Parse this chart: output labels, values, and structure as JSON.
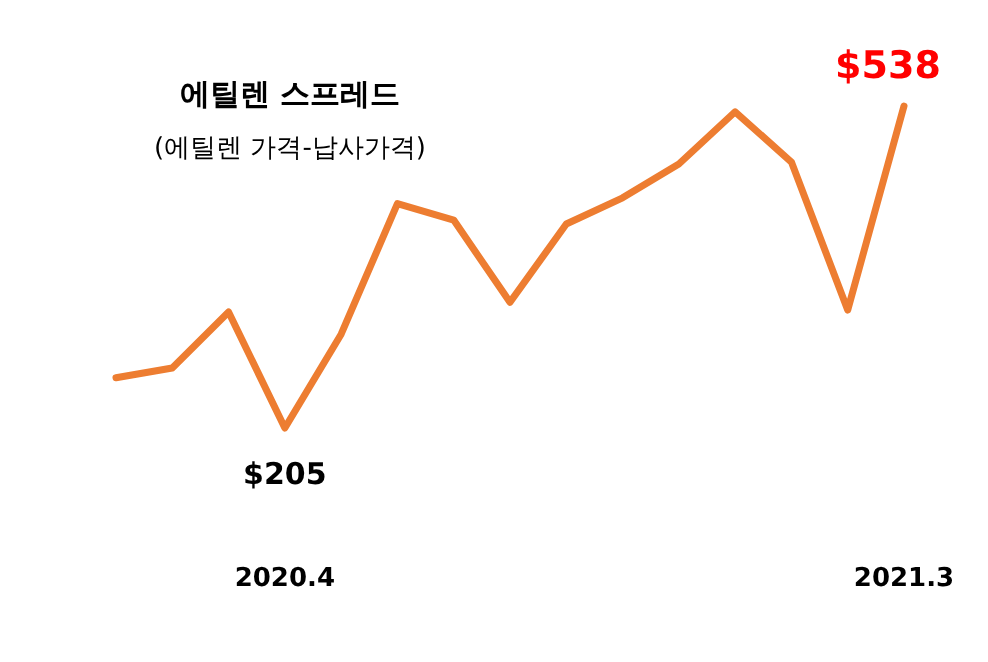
{
  "chart_data": {
    "type": "line",
    "title": "에틸렌 스프레드",
    "subtitle": "(에틸렌 가격-납사가격)",
    "categories": [
      null,
      null,
      null,
      "2020.4",
      null,
      null,
      null,
      null,
      null,
      null,
      null,
      null,
      null,
      null,
      "2021.3"
    ],
    "values": [
      257,
      267,
      325,
      205,
      302,
      437,
      420,
      335,
      416,
      443,
      478,
      532,
      480,
      327,
      538
    ],
    "value_labels": [
      null,
      null,
      null,
      "$205",
      null,
      null,
      null,
      null,
      null,
      null,
      null,
      null,
      null,
      null,
      "$538"
    ],
    "color": "#ed7d31"
  }
}
